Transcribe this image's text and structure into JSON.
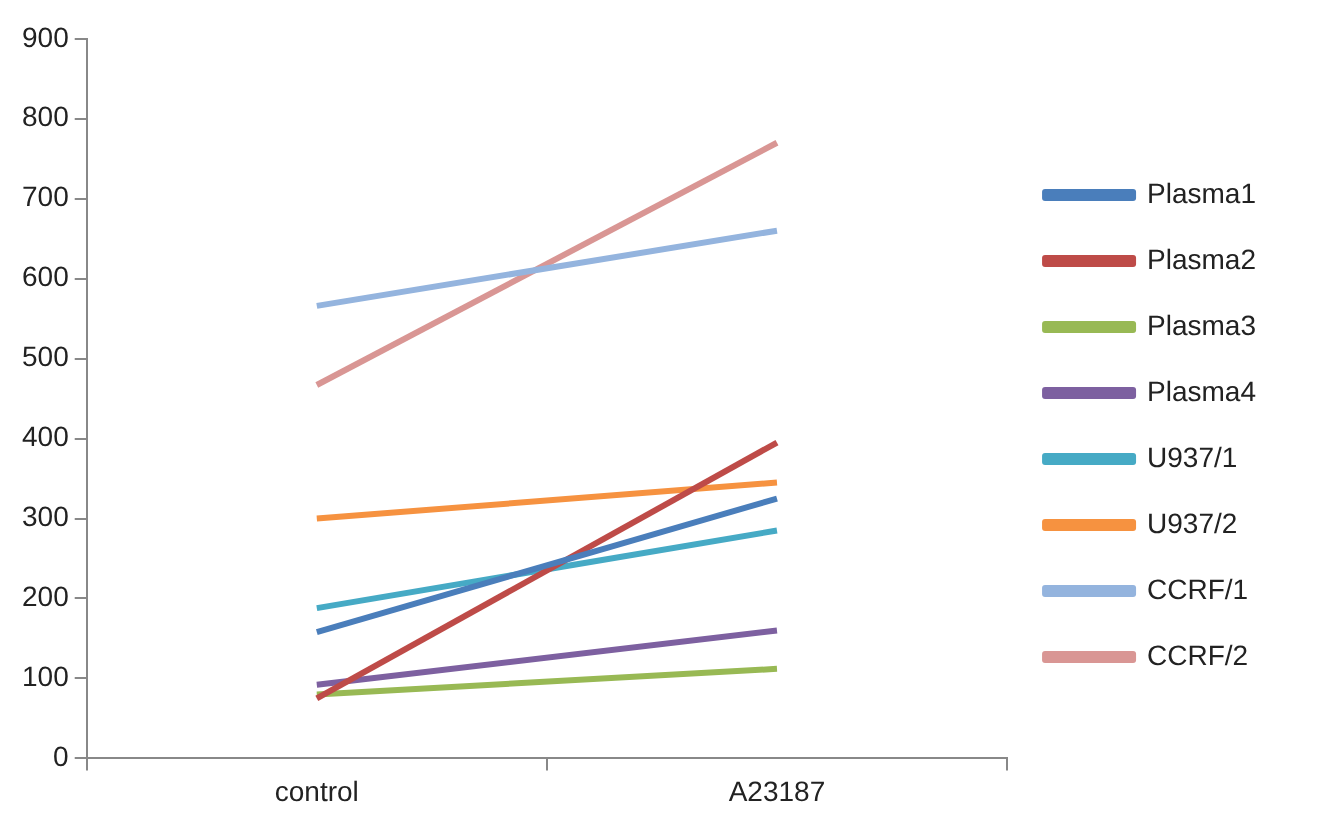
{
  "chart_data": {
    "type": "line",
    "categories": [
      "control",
      "A23187"
    ],
    "series": [
      {
        "name": "Plasma1",
        "color": "#4a7ebb",
        "values": [
          158,
          325
        ]
      },
      {
        "name": "Plasma2",
        "color": "#be4b48",
        "values": [
          75,
          395
        ]
      },
      {
        "name": "Plasma3",
        "color": "#98b954",
        "values": [
          80,
          112
        ]
      },
      {
        "name": "Plasma4",
        "color": "#7d60a0",
        "values": [
          92,
          160
        ]
      },
      {
        "name": "U937/1",
        "color": "#46aac5",
        "values": [
          188,
          285
        ]
      },
      {
        "name": "U937/2",
        "color": "#f69240",
        "values": [
          300,
          345
        ]
      },
      {
        "name": "CCRF/1",
        "color": "#94b4de",
        "values": [
          566,
          660
        ]
      },
      {
        "name": "CCRF/2",
        "color": "#d99694",
        "values": [
          467,
          770
        ]
      }
    ],
    "ylim": [
      0,
      900
    ],
    "yticks": [
      0,
      100,
      200,
      300,
      400,
      500,
      600,
      700,
      800,
      900
    ],
    "grid": false,
    "legend": "right",
    "marker": "none",
    "line_style": "solid"
  }
}
